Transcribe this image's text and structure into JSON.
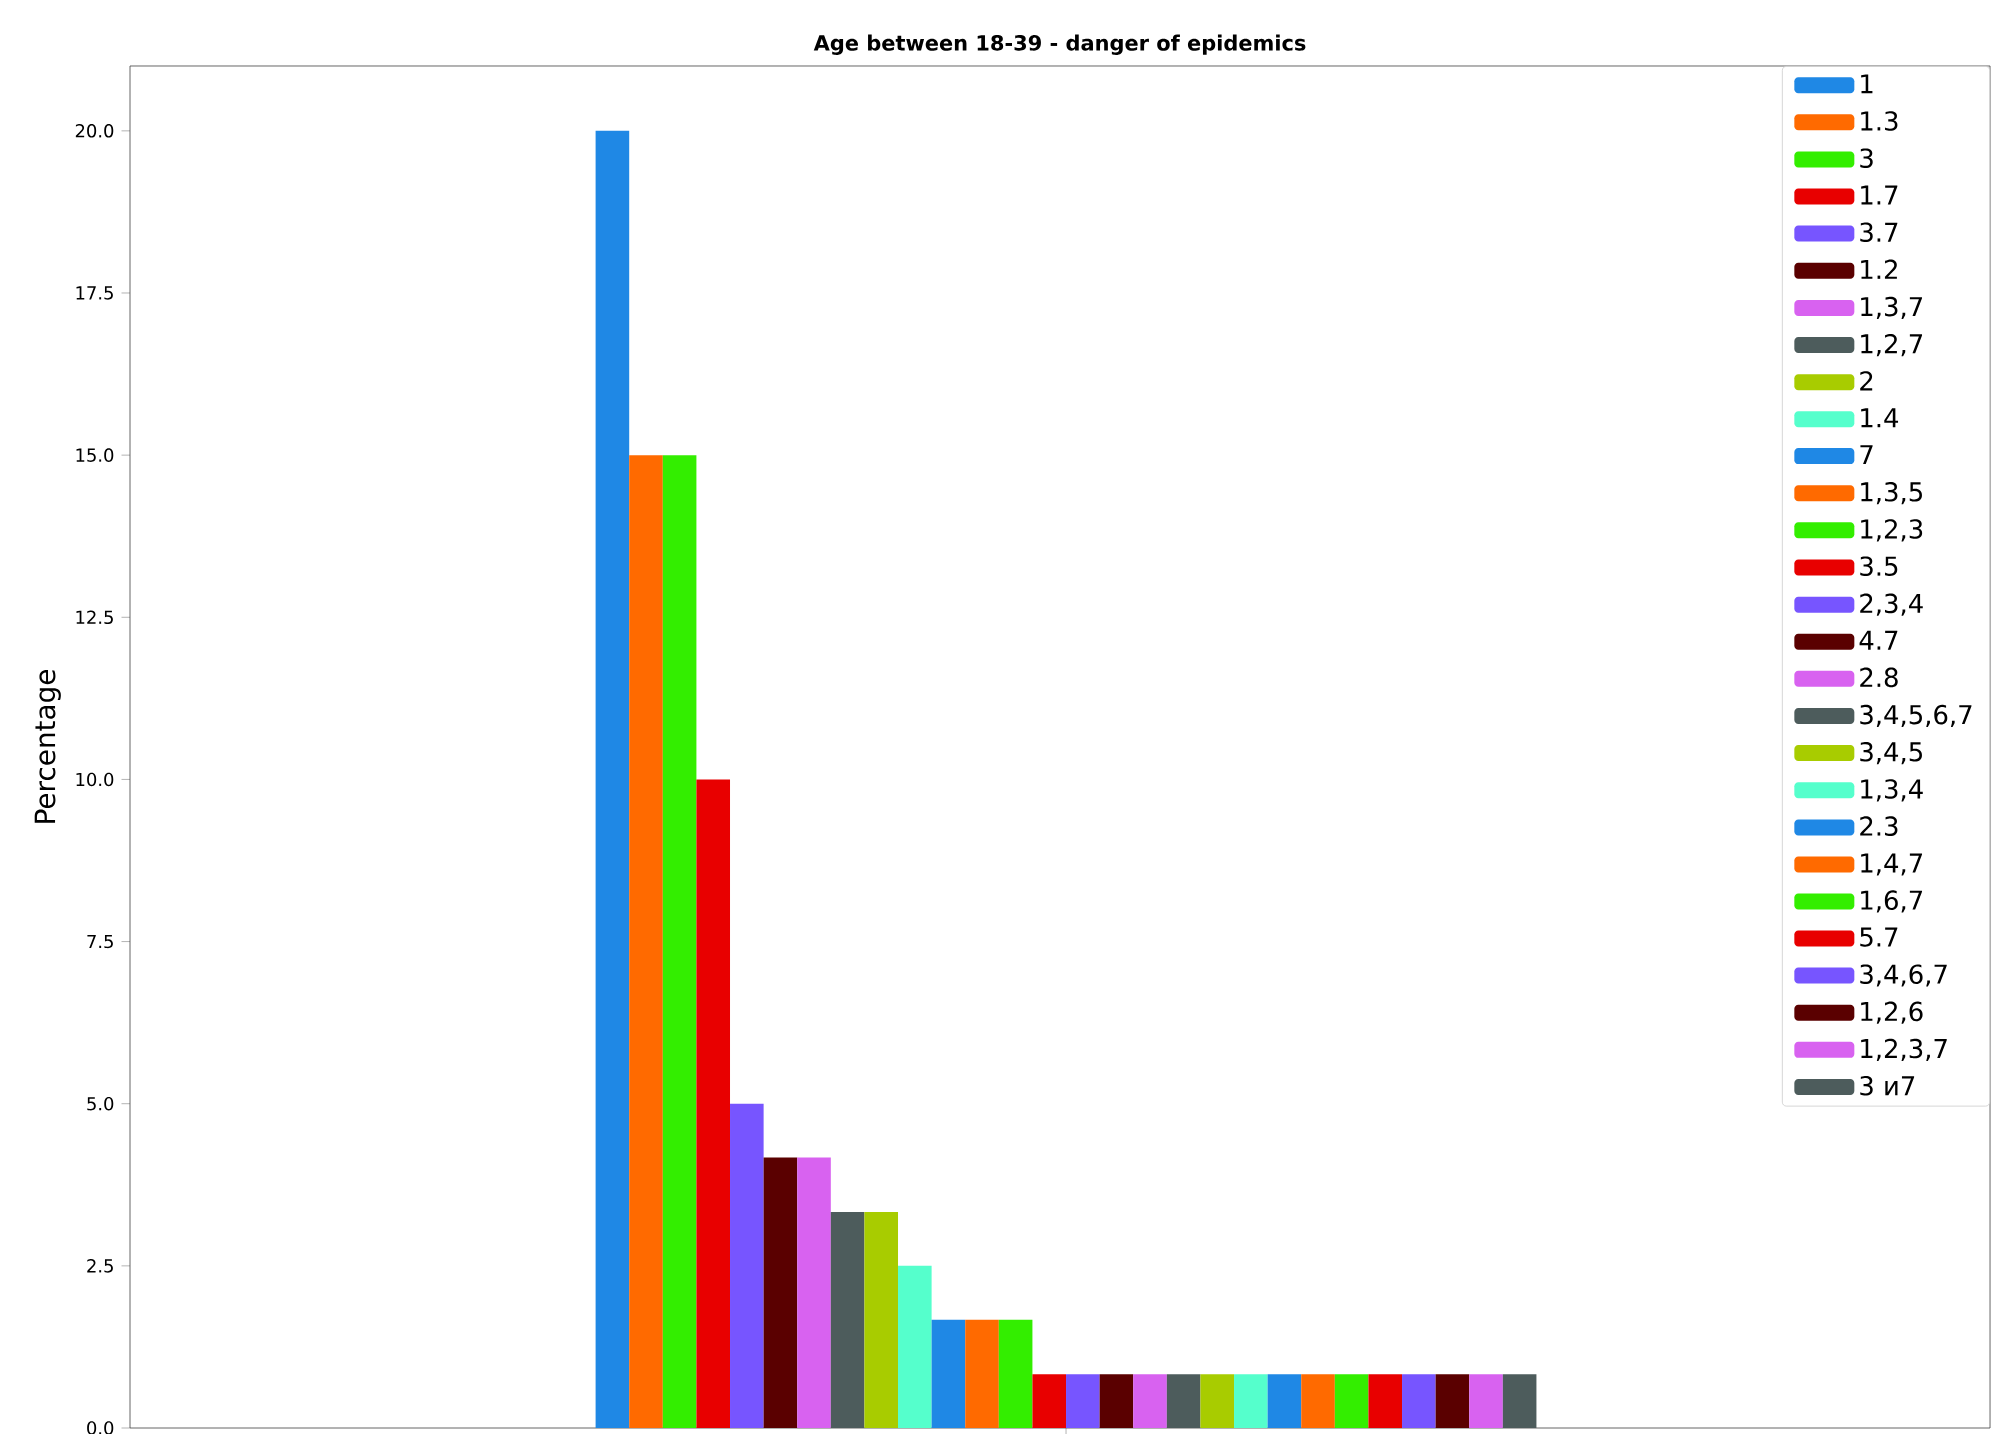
{
  "chart_data": {
    "type": "bar",
    "title": "Age between 18-39 - danger of epidemics",
    "ylabel": "Percentage",
    "categories": [
      null
    ],
    "ylim": [
      0,
      21
    ],
    "yticks": [
      {
        "value": 0,
        "label": "0.0"
      },
      {
        "value": 2.5,
        "label": "2.5"
      },
      {
        "value": 5,
        "label": "5.0"
      },
      {
        "value": 7.5,
        "label": "7.5"
      },
      {
        "value": 10,
        "label": "10.0"
      },
      {
        "value": 12.5,
        "label": "12.5"
      },
      {
        "value": 15,
        "label": "15.0"
      },
      {
        "value": 17.5,
        "label": "17.5"
      },
      {
        "value": 20,
        "label": "20.0"
      }
    ],
    "grid": false,
    "legend": "top right",
    "series": [
      {
        "name": "1",
        "color": "#1f88e5",
        "values": [
          20
        ]
      },
      {
        "name": "1.3",
        "color": "#ff6a00",
        "values": [
          15
        ]
      },
      {
        "name": "3",
        "color": "#33ee00",
        "values": [
          15
        ]
      },
      {
        "name": "1.7",
        "color": "#e80000",
        "values": [
          10
        ]
      },
      {
        "name": "3.7",
        "color": "#7755ff",
        "values": [
          5
        ]
      },
      {
        "name": "1.2",
        "color": "#5a0000",
        "values": [
          4.17
        ]
      },
      {
        "name": "1,3,7",
        "color": "#d862f0",
        "values": [
          4.17
        ]
      },
      {
        "name": "1,2,7",
        "color": "#4d5c5c",
        "values": [
          3.33
        ]
      },
      {
        "name": "2",
        "color": "#a8cc00",
        "values": [
          3.33
        ]
      },
      {
        "name": "1.4",
        "color": "#55ffcc",
        "values": [
          2.5
        ]
      },
      {
        "name": "7",
        "color": "#1f88e5",
        "values": [
          1.67
        ]
      },
      {
        "name": "1,3,5",
        "color": "#ff6a00",
        "values": [
          1.67
        ]
      },
      {
        "name": "1,2,3",
        "color": "#33ee00",
        "values": [
          1.67
        ]
      },
      {
        "name": "3.5",
        "color": "#e80000",
        "values": [
          0.83
        ]
      },
      {
        "name": "2,3,4",
        "color": "#7755ff",
        "values": [
          0.83
        ]
      },
      {
        "name": "4.7",
        "color": "#5a0000",
        "values": [
          0.83
        ]
      },
      {
        "name": "2.8",
        "color": "#d862f0",
        "values": [
          0.83
        ]
      },
      {
        "name": "3,4,5,6,7",
        "color": "#4d5c5c",
        "values": [
          0.83
        ]
      },
      {
        "name": "3,4,5",
        "color": "#a8cc00",
        "values": [
          0.83
        ]
      },
      {
        "name": "1,3,4",
        "color": "#55ffcc",
        "values": [
          0.83
        ]
      },
      {
        "name": "2.3",
        "color": "#1f88e5",
        "values": [
          0.83
        ]
      },
      {
        "name": "1,4,7",
        "color": "#ff6a00",
        "values": [
          0.83
        ]
      },
      {
        "name": "1,6,7",
        "color": "#33ee00",
        "values": [
          0.83
        ]
      },
      {
        "name": "5.7",
        "color": "#e80000",
        "values": [
          0.83
        ]
      },
      {
        "name": "3,4,6,7",
        "color": "#7755ff",
        "values": [
          0.83
        ]
      },
      {
        "name": "1,2,6",
        "color": "#5a0000",
        "values": [
          0.83
        ]
      },
      {
        "name": "1,2,3,7",
        "color": "#d862f0",
        "values": [
          0.83
        ]
      },
      {
        "name": "3 и7",
        "color": "#4d5c5c",
        "values": [
          0.83
        ]
      }
    ]
  }
}
